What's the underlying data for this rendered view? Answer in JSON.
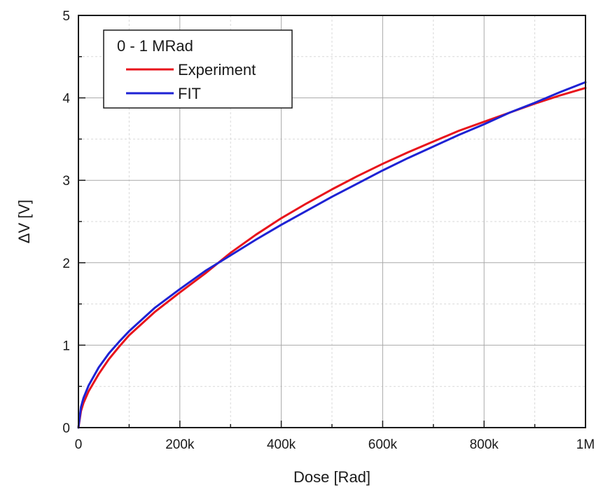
{
  "chart_data": {
    "type": "line",
    "title": "",
    "xlabel": "Dose [Rad]",
    "ylabel": "ΔV [V]",
    "xlim": [
      0,
      1000000
    ],
    "ylim": [
      0,
      5
    ],
    "x_ticks": [
      {
        "value": 0,
        "label": "0"
      },
      {
        "value": 200000,
        "label": "200k"
      },
      {
        "value": 400000,
        "label": "400k"
      },
      {
        "value": 600000,
        "label": "600k"
      },
      {
        "value": 800000,
        "label": "800k"
      },
      {
        "value": 1000000,
        "label": "1M"
      }
    ],
    "y_ticks": [
      {
        "value": 0,
        "label": "0"
      },
      {
        "value": 1,
        "label": "1"
      },
      {
        "value": 2,
        "label": "2"
      },
      {
        "value": 3,
        "label": "3"
      },
      {
        "value": 4,
        "label": "4"
      },
      {
        "value": 5,
        "label": "5"
      }
    ],
    "grid": true,
    "minor_grid": true,
    "legend": {
      "title": "0 - 1 MRad",
      "placement": "top-left"
    },
    "series": [
      {
        "name": "Experiment",
        "color": "#e8141c",
        "x": [
          0,
          5000,
          10000,
          20000,
          40000,
          60000,
          80000,
          100000,
          150000,
          200000,
          250000,
          300000,
          350000,
          400000,
          450000,
          500000,
          550000,
          600000,
          650000,
          700000,
          750000,
          800000,
          850000,
          900000,
          950000,
          1000000
        ],
        "y": [
          0,
          0.2,
          0.3,
          0.44,
          0.65,
          0.83,
          0.98,
          1.12,
          1.4,
          1.64,
          1.87,
          2.12,
          2.34,
          2.54,
          2.72,
          2.89,
          3.05,
          3.2,
          3.34,
          3.47,
          3.6,
          3.71,
          3.82,
          3.93,
          4.03,
          4.12
        ]
      },
      {
        "name": "FIT",
        "color": "#1e22d4",
        "x": [
          0,
          5000,
          10000,
          20000,
          40000,
          60000,
          80000,
          100000,
          150000,
          200000,
          250000,
          300000,
          350000,
          400000,
          450000,
          500000,
          550000,
          600000,
          650000,
          700000,
          750000,
          800000,
          850000,
          900000,
          950000,
          1000000
        ],
        "y": [
          0,
          0.25,
          0.36,
          0.51,
          0.73,
          0.9,
          1.04,
          1.17,
          1.45,
          1.68,
          1.9,
          2.09,
          2.28,
          2.46,
          2.63,
          2.8,
          2.96,
          3.12,
          3.27,
          3.41,
          3.55,
          3.68,
          3.82,
          3.94,
          4.07,
          4.19
        ]
      }
    ]
  }
}
